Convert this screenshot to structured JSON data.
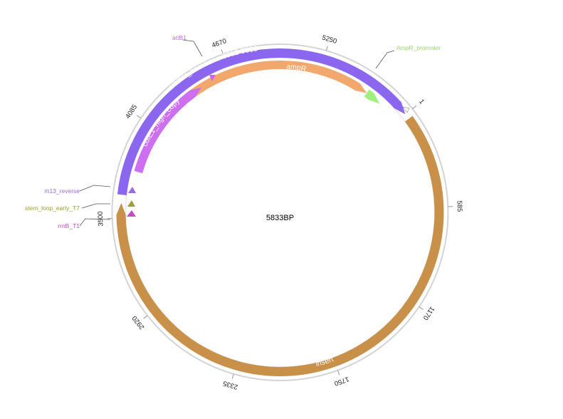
{
  "map": {
    "center_label": "5833BP",
    "total_bp": 5833,
    "backbone_color": "#d4d4d4"
  },
  "ticks": [
    {
      "bp": 1,
      "label": "1"
    },
    {
      "bp": 585,
      "label": "585"
    },
    {
      "bp": 1170,
      "label": "1170"
    },
    {
      "bp": 1750,
      "label": "1750"
    },
    {
      "bp": 2335,
      "label": "2335"
    },
    {
      "bp": 2920,
      "label": "2920"
    },
    {
      "bp": 3500,
      "label": "3500"
    },
    {
      "bp": 4085,
      "label": "4085"
    },
    {
      "bp": 4670,
      "label": "4670"
    },
    {
      "bp": 5250,
      "label": "5250"
    }
  ],
  "features": [
    {
      "name": "vector_backbone-3612-5833",
      "label": "vector_backbone-3612-5833",
      "color": "#8b67f0",
      "start": 3612,
      "end": 5833,
      "direction": "forward"
    },
    {
      "name": "insert",
      "label": "insert",
      "color": "#c9904a",
      "start": 1,
      "end": 3612,
      "direction": "forward"
    },
    {
      "name": "ampR",
      "label": "ampR",
      "color": "#f2a86c",
      "start": 4360,
      "end": 5575,
      "direction": "forward"
    },
    {
      "name": "colE1_high_copy",
      "label": "colE1_high_copy",
      "color": "#cd6ff0",
      "start": 3790,
      "end": 4470,
      "direction": "forward"
    },
    {
      "name": "AmpR_promoter",
      "label": "",
      "color": "#9ff07c",
      "start": 5575,
      "end": 5680,
      "direction": "forward"
    }
  ],
  "annotations": [
    {
      "name": "attB1",
      "label": "attB1",
      "color": "#cc66e8"
    },
    {
      "name": "AmpR_promoter",
      "label": "AmpR_promoter",
      "color": "#9bd96c"
    },
    {
      "name": "m13_reverse",
      "label": "m13_reverse",
      "color": "#9b6ce0"
    },
    {
      "name": "stem_loop_early_T7",
      "label": "stem_loop_early_T7",
      "color": "#9aa03a"
    },
    {
      "name": "rrnB_T1",
      "label": "rrnB_T1",
      "color": "#c14fc4"
    }
  ]
}
